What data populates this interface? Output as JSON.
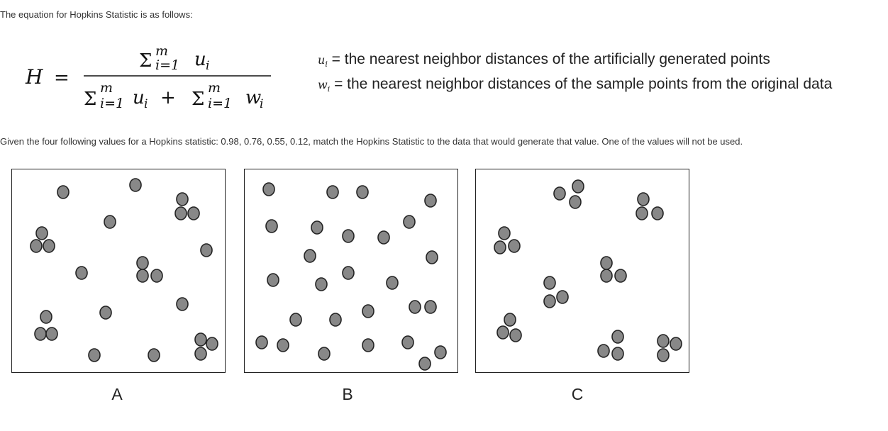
{
  "intro_text": "The equation for Hopkins Statistic is as follows:",
  "legend": [
    {
      "var": "u",
      "sub": "i",
      "text": " = the nearest neighbor distances of the artificially generated points"
    },
    {
      "var": "w",
      "sub": "i",
      "text": " = the nearest neighbor distances of the sample points from the original data"
    }
  ],
  "given_text": "Given the four following values for a Hopkins statistic: 0.98, 0.76, 0.55, 0.12, match the Hopkins Statistic to the data that would generate that value. One of the values will not be used.",
  "panel_labels": [
    "A",
    "B",
    "C"
  ],
  "dot_color": "#888888",
  "dot_stroke": "#222222"
}
